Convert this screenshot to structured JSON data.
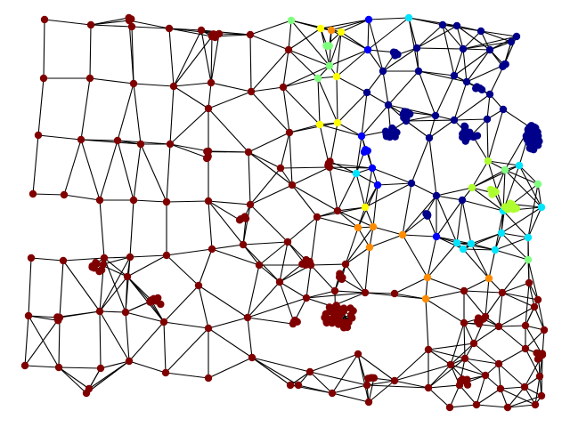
{
  "graph": {
    "node_palette": {
      "blue_dark": "#00008B",
      "blue": "#0000FF",
      "cyan": "#00E5FF",
      "lime": "#ADFF2F",
      "green": "#80FF7F",
      "yellow": "#FFFF00",
      "orange": "#FF8C00",
      "red_dark": "#800000"
    }
  }
}
